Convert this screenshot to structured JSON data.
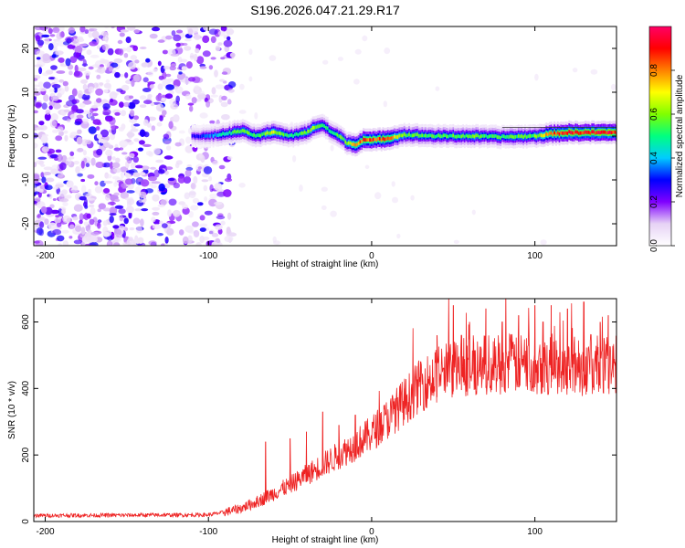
{
  "title": "S196.2026.047.21.29.R17",
  "chart_data": [
    {
      "type": "heatmap",
      "name": "spectrogram",
      "xlabel": "Height of straight line (km)",
      "ylabel": "Frequency (Hz)",
      "xlim": [
        -207,
        150
      ],
      "ylim": [
        -25,
        25
      ],
      "xticks": [
        -200,
        -100,
        0,
        100
      ],
      "yticks": [
        -20,
        -10,
        0,
        10,
        20
      ],
      "xtick_labels": [
        "-200",
        "-100",
        "0",
        "100"
      ],
      "ytick_labels": [
        "-20",
        "-10",
        "0",
        "10",
        "20"
      ],
      "ridge": {
        "description": "frequency of peak spectral amplitude vs height",
        "x": [
          -110,
          -100,
          -90,
          -80,
          -70,
          -60,
          -50,
          -40,
          -35,
          -30,
          -25,
          -20,
          -15,
          -10,
          -5,
          0,
          10,
          20,
          40,
          60,
          80,
          100,
          110,
          120,
          140,
          150
        ],
        "y": [
          0,
          0,
          0.5,
          1.2,
          0,
          1.0,
          0,
          0.8,
          2.0,
          2.5,
          1.0,
          0.0,
          -1.5,
          -2.0,
          -0.8,
          -1.0,
          -0.5,
          0.3,
          0.0,
          0.0,
          -0.2,
          0.0,
          0.5,
          0.8,
          0.8,
          0.8
        ],
        "peak_amplitude": [
          0.3,
          0.35,
          0.5,
          0.6,
          0.55,
          0.7,
          0.5,
          0.6,
          0.65,
          0.6,
          0.5,
          0.6,
          0.6,
          0.8,
          0.9,
          0.9,
          0.85,
          0.6,
          0.55,
          0.6,
          0.55,
          0.6,
          0.85,
          0.95,
          0.95,
          0.95
        ]
      },
      "noise_region": {
        "x_range": [
          -207,
          -85
        ],
        "amplitude_range": [
          0.0,
          0.25
        ]
      },
      "colorbar": {
        "label": "Normalized spectral amplitude",
        "range": [
          0,
          1
        ],
        "ticks": [
          0.0,
          0.2,
          0.4,
          0.6,
          0.8
        ],
        "tick_labels": [
          "0.0",
          "0.2",
          "0.4",
          "0.6",
          "0.8"
        ],
        "colors": [
          "#ffffff",
          "#e6d2f5",
          "#8000ff",
          "#0000ff",
          "#00ccff",
          "#00ff80",
          "#80ff00",
          "#ffff00",
          "#ff8000",
          "#ff0000",
          "#ff0066"
        ]
      }
    },
    {
      "type": "line",
      "name": "snr",
      "xlabel": "Height of straight line (km)",
      "ylabel": "SNR (10 * v/v)",
      "xlim": [
        -207,
        150
      ],
      "ylim": [
        0,
        670
      ],
      "xticks": [
        -200,
        -100,
        0,
        100
      ],
      "yticks": [
        0,
        200,
        400,
        600
      ],
      "xtick_labels": [
        "-200",
        "-100",
        "0",
        "100"
      ],
      "ytick_labels": [
        "0",
        "200",
        "400",
        "600"
      ],
      "color": "#ee2222",
      "baseline_trend": {
        "x": [
          -207,
          -100,
          -90,
          -80,
          -70,
          -60,
          -50,
          -40,
          -30,
          -20,
          -10,
          0,
          10,
          20,
          30,
          40,
          50,
          60,
          80,
          100,
          120,
          150
        ],
        "y": [
          18,
          20,
          28,
          40,
          60,
          85,
          110,
          140,
          170,
          200,
          230,
          265,
          310,
          360,
          410,
          440,
          460,
          470,
          475,
          475,
          470,
          470
        ]
      },
      "spike_peaks": {
        "x": [
          -65,
          -50,
          -40,
          -30,
          -20,
          -10,
          5,
          15,
          20,
          30,
          40,
          50,
          55,
          60,
          70,
          80,
          90,
          100,
          105,
          110,
          120,
          130,
          140,
          145
        ],
        "y": [
          240,
          250,
          270,
          330,
          290,
          320,
          300,
          370,
          400,
          480,
          560,
          650,
          560,
          600,
          640,
          600,
          620,
          650,
          600,
          650,
          640,
          660,
          600,
          620
        ]
      }
    }
  ]
}
